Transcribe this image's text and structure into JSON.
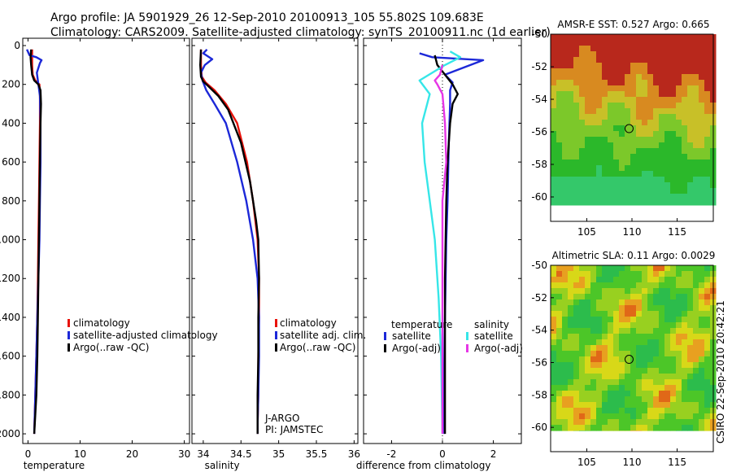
{
  "header": {
    "line1": "Argo profile: JA 5901929_26 12-Sep-2010 20100913_105 55.802S 109.683E",
    "line2": "Climatology: CARS2009. Satellite-adjusted climatology: synTS_20100911.nc (1d earlier)"
  },
  "credit": "CSIRO  22-Sep-2010 20:42:21",
  "colors": {
    "climatology": "#e8120a",
    "satellite": "#1c28d8",
    "argo": "#000000",
    "sal_satellite": "#36e6e8",
    "sal_argo": "#e636e6"
  },
  "chart_data": [
    {
      "id": "temperature",
      "type": "line",
      "xlabel": "temperature",
      "xlim": [
        -1,
        31
      ],
      "ylim": [
        0,
        2050
      ],
      "xticks": [
        0,
        10,
        20,
        30
      ],
      "yticks": [
        0,
        200,
        400,
        600,
        800,
        1000,
        1200,
        1400,
        1600,
        1800,
        2000
      ],
      "series": [
        {
          "name": "climatology",
          "color": "#e8120a",
          "x": [
            0.8,
            0.8,
            0.9,
            1.4,
            2.2,
            2.3,
            2.3,
            2.2,
            2.1,
            2.0,
            1.9,
            1.8,
            1.6,
            1.4,
            1.2
          ],
          "y": [
            20,
            100,
            150,
            180,
            200,
            250,
            400,
            600,
            800,
            1000,
            1200,
            1400,
            1600,
            1800,
            2000
          ]
        },
        {
          "name": "satellite-adjusted climatology",
          "color": "#1c28d8",
          "x": [
            -0.2,
            0.3,
            1.6,
            2.6,
            2.3,
            1.7,
            2.0,
            2.3,
            2.4,
            2.4,
            2.3,
            2.2,
            2.0,
            1.8,
            1.6,
            1.4,
            1.2
          ],
          "y": [
            20,
            50,
            60,
            75,
            90,
            140,
            200,
            260,
            400,
            600,
            800,
            1000,
            1200,
            1400,
            1600,
            1800,
            2000
          ]
        },
        {
          "name": "Argo(..raw -QC)",
          "color": "#000000",
          "x": [
            0.6,
            0.5,
            0.6,
            0.8,
            1.2,
            2.0,
            2.4,
            2.5,
            2.4,
            2.3,
            2.2,
            2.1,
            2.0,
            1.9,
            1.8,
            1.6,
            1.4,
            1.2
          ],
          "y": [
            20,
            60,
            100,
            150,
            180,
            200,
            230,
            300,
            400,
            600,
            800,
            1000,
            1200,
            1400,
            1600,
            1800,
            1900,
            2000
          ]
        }
      ],
      "legend": [
        "climatology",
        "satellite-adjusted climatology",
        "Argo(..raw -QC)"
      ]
    },
    {
      "id": "salinity",
      "type": "line",
      "xlabel": "salinity",
      "xlim": [
        33.85,
        36.05
      ],
      "ylim": [
        0,
        2050
      ],
      "xticks": [
        34,
        34.5,
        35,
        35.5,
        36
      ],
      "yticks": [
        0,
        200,
        400,
        600,
        800,
        1000,
        1200,
        1400,
        1600,
        1800,
        2000
      ],
      "series": [
        {
          "name": "climatology",
          "color": "#e8120a",
          "x": [
            33.97,
            33.97,
            33.98,
            34.03,
            34.15,
            34.3,
            34.45,
            34.58,
            34.66,
            34.72,
            34.74,
            34.74,
            34.73,
            34.73,
            34.72,
            34.72
          ],
          "y": [
            20,
            100,
            160,
            190,
            230,
            300,
            400,
            600,
            800,
            1000,
            1200,
            1400,
            1600,
            1800,
            1950,
            2000
          ]
        },
        {
          "name": "satellite adj. clim.",
          "color": "#1c28d8",
          "x": [
            34.05,
            34.0,
            34.12,
            34.02,
            33.97,
            33.99,
            34.04,
            34.15,
            34.3,
            34.45,
            34.57,
            34.66,
            34.72,
            34.74,
            34.74,
            34.73,
            34.72,
            34.72
          ],
          "y": [
            20,
            40,
            70,
            100,
            140,
            180,
            230,
            300,
            400,
            600,
            800,
            1000,
            1200,
            1400,
            1600,
            1800,
            1950,
            2000
          ]
        },
        {
          "name": "Argo(..raw -QC)",
          "color": "#000000",
          "x": [
            33.97,
            33.96,
            33.97,
            34.0,
            34.07,
            34.2,
            34.33,
            34.5,
            34.62,
            34.7,
            34.73,
            34.74,
            34.73,
            34.73,
            34.72,
            34.72
          ],
          "y": [
            20,
            100,
            160,
            185,
            210,
            260,
            330,
            500,
            700,
            900,
            1000,
            1200,
            1400,
            1600,
            1800,
            2000
          ]
        }
      ],
      "legend": [
        "climatology",
        "satellite adj. clim.",
        "Argo(..raw -QC)"
      ],
      "annotation": [
        "J-ARGO",
        "PI: JAMSTEC"
      ]
    },
    {
      "id": "difference",
      "type": "line",
      "xlabel": "difference from climatology",
      "xlim": [
        -3.1,
        3.1
      ],
      "ylim": [
        0,
        2050
      ],
      "xticks": [
        -2,
        0,
        2
      ],
      "yticks": [
        0,
        200,
        400,
        600,
        800,
        1000,
        1200,
        1400,
        1600,
        1800,
        2000
      ],
      "series": [
        {
          "name": "temperature satellite",
          "color": "#1c28d8",
          "x": [
            -0.9,
            -0.4,
            1.6,
            0.1,
            0.4,
            0.3,
            0.3,
            0.25,
            0.2,
            0.15,
            0.1,
            0.05,
            0.05
          ],
          "y": [
            40,
            60,
            75,
            150,
            190,
            230,
            300,
            500,
            800,
            1000,
            1400,
            1800,
            2000
          ]
        },
        {
          "name": "temperature Argo(-adj)",
          "color": "#000000",
          "x": [
            -0.3,
            -0.2,
            0.1,
            0.4,
            0.6,
            0.4,
            0.3,
            0.2,
            0.15,
            0.1,
            0.1
          ],
          "y": [
            50,
            100,
            150,
            200,
            250,
            300,
            400,
            600,
            800,
            1200,
            2000
          ]
        },
        {
          "name": "salinity satellite",
          "color": "#36e6e8",
          "x": [
            0.3,
            0.7,
            0.1,
            -0.9,
            -0.5,
            -0.8,
            -0.7,
            -0.5,
            -0.3,
            -0.15,
            -0.05,
            0.0
          ],
          "y": [
            30,
            60,
            100,
            180,
            250,
            400,
            600,
            800,
            1000,
            1300,
            1600,
            2000
          ]
        },
        {
          "name": "salinity Argo(-adj)",
          "color": "#e636e6",
          "x": [
            0.0,
            -0.1,
            -0.3,
            -0.2,
            0.0,
            0.1,
            0.15,
            0.0,
            0.0,
            0.0
          ],
          "y": [
            100,
            150,
            180,
            200,
            250,
            400,
            600,
            800,
            1200,
            2000
          ]
        }
      ],
      "legend_groups": [
        {
          "title": "temperature",
          "items": [
            "satellite",
            "Argo(-adj)"
          ]
        },
        {
          "title": "salinity",
          "items": [
            "satellite",
            "Argo(-adj)"
          ]
        }
      ]
    },
    {
      "id": "sst_map",
      "type": "heatmap",
      "title": "AMSR-E SST: 0.527 Argo: 0.665",
      "xlim": [
        101,
        119
      ],
      "ylim": [
        -61.5,
        -50
      ],
      "xticks": [
        105,
        110,
        115
      ],
      "yticks": [
        -50,
        -52,
        -54,
        -56,
        -58,
        -60
      ],
      "data_ylim": [
        -60.5,
        -50
      ],
      "marker": {
        "lon": 109.683,
        "lat": -55.802
      }
    },
    {
      "id": "sla_map",
      "type": "heatmap",
      "title": "Altimetric SLA: 0.11 Argo: 0.0029",
      "xlim": [
        101,
        119
      ],
      "ylim": [
        -61.5,
        -50
      ],
      "xticks": [
        105,
        110,
        115
      ],
      "yticks": [
        -50,
        -52,
        -54,
        -56,
        -58,
        -60
      ],
      "data_ylim": [
        -60.2,
        -50
      ],
      "marker": {
        "lon": 109.683,
        "lat": -55.802
      }
    }
  ]
}
